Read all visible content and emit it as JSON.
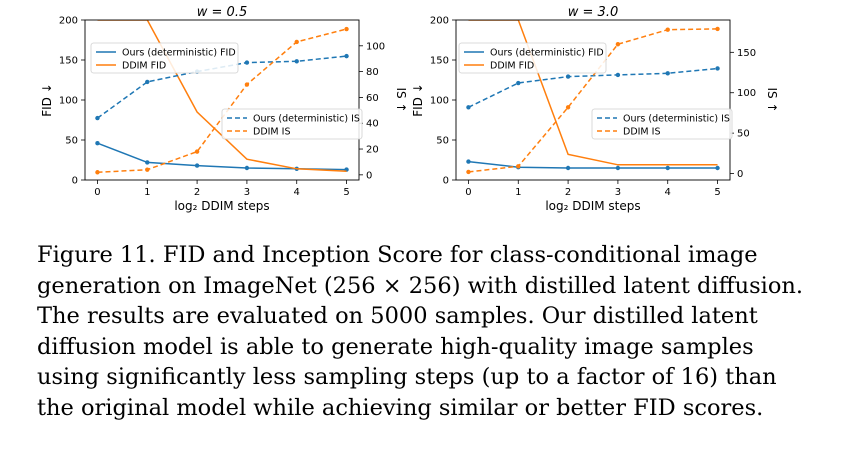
{
  "chart_data": [
    {
      "type": "line",
      "title": "w = 0.5",
      "xlabel": "log₂ DDIM steps",
      "ylabel_left": "FID ↓",
      "ylabel_right": "IS ↑",
      "x": [
        0,
        1,
        2,
        3,
        4,
        5
      ],
      "xlim": [
        -0.25,
        5.25
      ],
      "ylim_left": [
        0,
        200
      ],
      "yticks_left": [
        0,
        50,
        100,
        150,
        200
      ],
      "ylim_right": [
        -4,
        120
      ],
      "yticks_right": [
        0,
        20,
        40,
        60,
        80,
        100
      ],
      "series": [
        {
          "name": "Ours (deterministic) FID",
          "axis": "left",
          "style": "solid",
          "color": "#1f77b4",
          "markers": true,
          "values": [
            46,
            22,
            18,
            15,
            14,
            13
          ]
        },
        {
          "name": "DDIM FID",
          "axis": "left",
          "style": "solid",
          "color": "#ff7f0e",
          "markers": false,
          "values": [
            200,
            200,
            85,
            26,
            14,
            11
          ]
        },
        {
          "name": "Ours (deterministic) IS",
          "axis": "right",
          "style": "dashed",
          "color": "#1f77b4",
          "markers": true,
          "values": [
            44,
            72,
            80,
            87,
            88,
            92
          ]
        },
        {
          "name": "DDIM IS",
          "axis": "right",
          "style": "dashed",
          "color": "#ff7f0e",
          "markers": true,
          "values": [
            2,
            4,
            18,
            70,
            103,
            113
          ]
        }
      ],
      "legends": [
        {
          "placement": "upper-left",
          "entries": [
            0,
            1
          ]
        },
        {
          "placement": "center-right",
          "entries": [
            2,
            3
          ]
        }
      ]
    },
    {
      "type": "line",
      "title": "w = 3.0",
      "xlabel": "log₂ DDIM steps",
      "ylabel_left": "FID ↓",
      "ylabel_right": "IS ↑",
      "x": [
        0,
        1,
        2,
        3,
        4,
        5
      ],
      "xlim": [
        -0.25,
        5.25
      ],
      "ylim_left": [
        0,
        200
      ],
      "yticks_left": [
        0,
        50,
        100,
        150,
        200
      ],
      "ylim_right": [
        -8,
        190
      ],
      "yticks_right": [
        0,
        50,
        100,
        150
      ],
      "series": [
        {
          "name": "Ours (deterministic) FID",
          "axis": "left",
          "style": "solid",
          "color": "#1f77b4",
          "markers": true,
          "values": [
            23,
            16,
            15,
            15,
            15,
            15
          ]
        },
        {
          "name": "DDIM FID",
          "axis": "left",
          "style": "solid",
          "color": "#ff7f0e",
          "markers": false,
          "values": [
            200,
            200,
            32,
            19,
            19,
            19
          ]
        },
        {
          "name": "Ours (deterministic) IS",
          "axis": "right",
          "style": "dashed",
          "color": "#1f77b4",
          "markers": true,
          "values": [
            82,
            112,
            120,
            122,
            124,
            130
          ]
        },
        {
          "name": "DDIM IS",
          "axis": "right",
          "style": "dashed",
          "color": "#ff7f0e",
          "markers": true,
          "values": [
            2,
            9,
            82,
            160,
            178,
            179
          ]
        }
      ],
      "legends": [
        {
          "placement": "upper-left",
          "entries": [
            0,
            1
          ]
        },
        {
          "placement": "center-right",
          "entries": [
            2,
            3
          ]
        }
      ]
    }
  ],
  "caption": {
    "lines": [
      "Figure 11.  FID and Inception Score for class-conditional image",
      "generation on ImageNet (256 × 256) with distilled latent diffusion.",
      "The results are evaluated on 5000 samples.  Our distilled latent",
      "diffusion model is able to generate high-quality image samples",
      "using significantly less sampling steps (up to a factor of 16) than",
      "the original model while achieving similar or better FID scores."
    ]
  }
}
